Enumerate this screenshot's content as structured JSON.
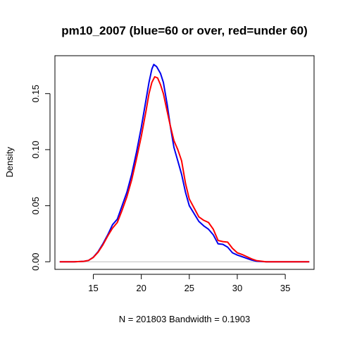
{
  "chart_data": {
    "type": "line",
    "title": "pm10_2007 (blue=60 or over, red=under 60)",
    "xlabel": "N = 201803   Bandwidth = 0.1903",
    "ylabel": "Density",
    "xlim": [
      11,
      38
    ],
    "ylim": [
      -0.0068,
      0.1838
    ],
    "x_ticks": [
      15,
      20,
      25,
      30,
      35
    ],
    "x_tick_labels": [
      "15",
      "20",
      "25",
      "30",
      "35"
    ],
    "y_ticks": [
      0.0,
      0.05,
      0.1,
      0.15
    ],
    "y_tick_labels": [
      "0.00",
      "0.05",
      "0.10",
      "0.15"
    ],
    "grid": false,
    "zero_line": true,
    "series": [
      {
        "color": "#0000ee",
        "points": [
          [
            11.5,
            0.0
          ],
          [
            13.0,
            0.0
          ],
          [
            14.0,
            0.0004
          ],
          [
            14.5,
            0.0012
          ],
          [
            15.0,
            0.004
          ],
          [
            15.5,
            0.009
          ],
          [
            16.0,
            0.016
          ],
          [
            16.5,
            0.024
          ],
          [
            17.0,
            0.033
          ],
          [
            17.5,
            0.038
          ],
          [
            18.0,
            0.05
          ],
          [
            18.5,
            0.062
          ],
          [
            19.0,
            0.078
          ],
          [
            19.5,
            0.098
          ],
          [
            20.0,
            0.12
          ],
          [
            20.5,
            0.145
          ],
          [
            20.8,
            0.16
          ],
          [
            21.1,
            0.172
          ],
          [
            21.3,
            0.176
          ],
          [
            21.6,
            0.174
          ],
          [
            22.0,
            0.168
          ],
          [
            22.3,
            0.16
          ],
          [
            22.7,
            0.14
          ],
          [
            23.0,
            0.122
          ],
          [
            23.4,
            0.102
          ],
          [
            23.8,
            0.09
          ],
          [
            24.2,
            0.078
          ],
          [
            24.6,
            0.062
          ],
          [
            25.0,
            0.05
          ],
          [
            25.5,
            0.043
          ],
          [
            26.0,
            0.036
          ],
          [
            26.5,
            0.032
          ],
          [
            27.0,
            0.029
          ],
          [
            27.5,
            0.024
          ],
          [
            28.0,
            0.016
          ],
          [
            28.5,
            0.0155
          ],
          [
            29.0,
            0.013
          ],
          [
            29.5,
            0.008
          ],
          [
            30.0,
            0.006
          ],
          [
            30.5,
            0.0045
          ],
          [
            31.0,
            0.003
          ],
          [
            31.5,
            0.0015
          ],
          [
            32.0,
            0.0005
          ],
          [
            33.0,
            0.0
          ],
          [
            37.5,
            0.0
          ]
        ]
      },
      {
        "color": "#ff0000",
        "points": [
          [
            11.5,
            0.0
          ],
          [
            13.0,
            0.0
          ],
          [
            14.0,
            0.0004
          ],
          [
            14.5,
            0.0012
          ],
          [
            15.0,
            0.0038
          ],
          [
            15.5,
            0.0085
          ],
          [
            16.0,
            0.015
          ],
          [
            16.5,
            0.023
          ],
          [
            17.0,
            0.03
          ],
          [
            17.5,
            0.035
          ],
          [
            18.0,
            0.046
          ],
          [
            18.5,
            0.058
          ],
          [
            19.0,
            0.073
          ],
          [
            19.5,
            0.092
          ],
          [
            20.0,
            0.112
          ],
          [
            20.5,
            0.135
          ],
          [
            20.8,
            0.15
          ],
          [
            21.1,
            0.16
          ],
          [
            21.4,
            0.165
          ],
          [
            21.7,
            0.164
          ],
          [
            22.0,
            0.158
          ],
          [
            22.3,
            0.15
          ],
          [
            22.6,
            0.138
          ],
          [
            23.0,
            0.122
          ],
          [
            23.4,
            0.108
          ],
          [
            23.8,
            0.1
          ],
          [
            24.2,
            0.09
          ],
          [
            24.6,
            0.07
          ],
          [
            25.0,
            0.056
          ],
          [
            25.5,
            0.048
          ],
          [
            26.0,
            0.04
          ],
          [
            26.5,
            0.037
          ],
          [
            27.0,
            0.035
          ],
          [
            27.5,
            0.029
          ],
          [
            28.0,
            0.019
          ],
          [
            28.5,
            0.018
          ],
          [
            29.0,
            0.0175
          ],
          [
            29.5,
            0.012
          ],
          [
            30.0,
            0.008
          ],
          [
            30.5,
            0.0065
          ],
          [
            31.0,
            0.0045
          ],
          [
            31.5,
            0.0025
          ],
          [
            32.0,
            0.001
          ],
          [
            33.0,
            0.0
          ],
          [
            37.5,
            0.0
          ]
        ]
      }
    ]
  }
}
